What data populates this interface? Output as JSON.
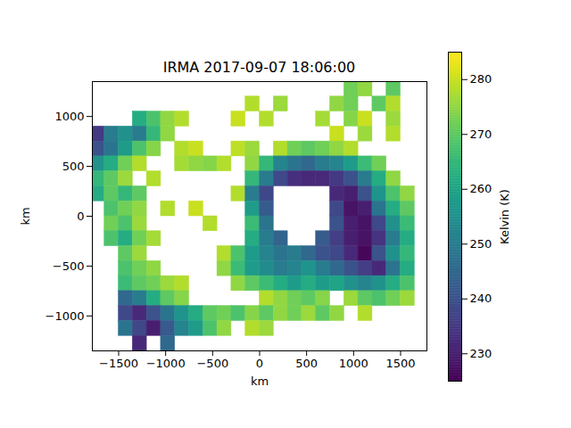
{
  "chart_data": {
    "type": "heatmap",
    "title": "IRMA 2017-09-07 18:06:00",
    "x_label": "km",
    "y_label": "km",
    "color": "viridis",
    "xlim": [
      -1780,
      1780
    ],
    "ylim": [
      -1350,
      1350
    ],
    "xticks": [
      -1500,
      -1000,
      -500,
      0,
      500,
      1000,
      1500
    ],
    "yticks": [
      -1000,
      -500,
      0,
      500,
      1000
    ],
    "x": [
      -1725,
      -1575,
      -1425,
      -1275,
      -1125,
      -975,
      -825,
      -675,
      -525,
      -375,
      -225,
      -75,
      75,
      225,
      375,
      525,
      675,
      825,
      975,
      1125,
      1275,
      1425,
      1575,
      1725
    ],
    "y": [
      1275,
      1125,
      975,
      825,
      675,
      525,
      375,
      225,
      75,
      -75,
      -225,
      -375,
      -525,
      -675,
      -825,
      -975,
      -1125,
      -1275
    ],
    "z": [
      [
        null,
        null,
        null,
        null,
        null,
        null,
        null,
        null,
        null,
        null,
        null,
        null,
        null,
        null,
        null,
        null,
        null,
        null,
        272,
        275,
        null,
        270,
        null,
        null
      ],
      [
        null,
        null,
        null,
        null,
        null,
        null,
        null,
        null,
        null,
        null,
        null,
        278,
        null,
        276,
        null,
        null,
        null,
        275,
        272,
        null,
        270,
        278,
        null,
        null
      ],
      [
        null,
        null,
        null,
        262,
        268,
        275,
        278,
        null,
        null,
        null,
        280,
        null,
        278,
        null,
        null,
        null,
        277,
        null,
        274,
        280,
        null,
        276,
        null,
        null
      ],
      [
        235,
        250,
        255,
        250,
        265,
        275,
        null,
        null,
        null,
        null,
        null,
        null,
        null,
        null,
        null,
        null,
        null,
        280,
        null,
        276,
        null,
        278,
        null,
        null
      ],
      [
        240,
        248,
        258,
        268,
        274,
        null,
        278,
        280,
        null,
        null,
        279,
        276,
        null,
        278,
        272,
        270,
        272,
        275,
        278,
        null,
        null,
        null,
        null,
        null
      ],
      [
        255,
        262,
        272,
        278,
        null,
        null,
        277,
        275,
        274,
        278,
        null,
        275,
        265,
        252,
        248,
        245,
        250,
        252,
        258,
        266,
        272,
        null,
        null,
        null
      ],
      [
        265,
        270,
        276,
        null,
        278,
        null,
        null,
        null,
        null,
        null,
        null,
        265,
        250,
        238,
        233,
        232,
        232,
        235,
        240,
        250,
        262,
        275,
        null,
        null
      ],
      [
        262,
        270,
        265,
        270,
        null,
        null,
        null,
        null,
        null,
        null,
        278,
        250,
        238,
        null,
        null,
        null,
        null,
        232,
        230,
        240,
        256,
        268,
        275,
        null
      ],
      [
        null,
        268,
        272,
        275,
        null,
        278,
        null,
        280,
        null,
        null,
        null,
        258,
        242,
        null,
        null,
        null,
        null,
        238,
        228,
        230,
        248,
        262,
        270,
        null
      ],
      [
        null,
        272,
        268,
        276,
        null,
        null,
        null,
        null,
        278,
        null,
        null,
        266,
        248,
        null,
        null,
        null,
        null,
        240,
        230,
        228,
        238,
        255,
        266,
        null
      ],
      [
        null,
        268,
        262,
        272,
        277,
        null,
        null,
        null,
        null,
        null,
        null,
        262,
        250,
        244,
        null,
        null,
        242,
        236,
        230,
        228,
        234,
        250,
        262,
        null
      ],
      [
        null,
        null,
        270,
        276,
        null,
        null,
        null,
        null,
        null,
        278,
        268,
        258,
        252,
        248,
        250,
        245,
        240,
        238,
        232,
        226,
        240,
        255,
        265,
        null
      ],
      [
        null,
        null,
        268,
        272,
        275,
        null,
        null,
        null,
        null,
        275,
        266,
        258,
        254,
        250,
        252,
        256,
        250,
        245,
        240,
        236,
        232,
        248,
        262,
        null
      ],
      [
        null,
        null,
        266,
        270,
        272,
        276,
        278,
        null,
        null,
        null,
        275,
        270,
        266,
        262,
        258,
        262,
        258,
        260,
        255,
        252,
        255,
        262,
        268,
        null
      ],
      [
        null,
        null,
        245,
        250,
        262,
        270,
        274,
        null,
        null,
        null,
        null,
        null,
        278,
        275,
        272,
        270,
        274,
        null,
        276,
        270,
        268,
        272,
        276,
        null
      ],
      [
        null,
        null,
        238,
        232,
        240,
        248,
        256,
        262,
        270,
        272,
        268,
        274,
        270,
        275,
        272,
        276,
        270,
        275,
        null,
        278,
        null,
        null,
        null,
        null
      ],
      [
        null,
        null,
        248,
        238,
        230,
        242,
        252,
        258,
        268,
        275,
        null,
        278,
        276,
        null,
        null,
        null,
        null,
        null,
        null,
        null,
        null,
        null,
        null,
        null
      ],
      [
        null,
        null,
        null,
        232,
        null,
        245,
        null,
        null,
        null,
        null,
        null,
        null,
        null,
        null,
        null,
        null,
        null,
        null,
        null,
        null,
        null,
        null,
        null,
        null
      ]
    ],
    "colorbar": {
      "label": "Kelvin (K)",
      "range": [
        225,
        285
      ],
      "ticks": [
        230,
        240,
        250,
        260,
        270,
        280
      ]
    }
  }
}
